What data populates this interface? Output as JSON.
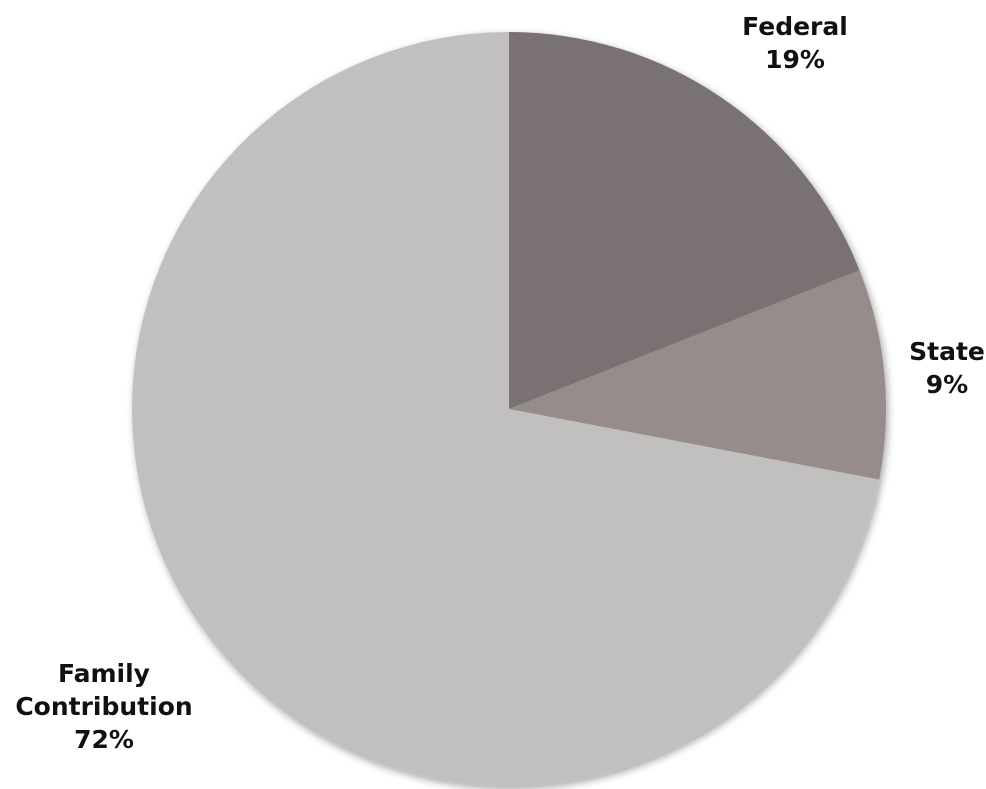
{
  "chart_data": {
    "type": "pie",
    "title": "",
    "start_angle_deg": 0,
    "direction": "clockwise",
    "slices": [
      {
        "label_lines": [
          "Federal"
        ],
        "label": "Federal",
        "value": 19,
        "value_label": "19%",
        "color": "#7a7172"
      },
      {
        "label_lines": [
          "State"
        ],
        "label": "State",
        "value": 9,
        "value_label": "9%",
        "color": "#958c8b"
      },
      {
        "label_lines": [
          "Family",
          "Contribution"
        ],
        "label": "Family Contribution",
        "value": 72,
        "value_label": "72%",
        "color": "#c2bfbf"
      }
    ],
    "legend": "none",
    "data_labels": "outside"
  }
}
